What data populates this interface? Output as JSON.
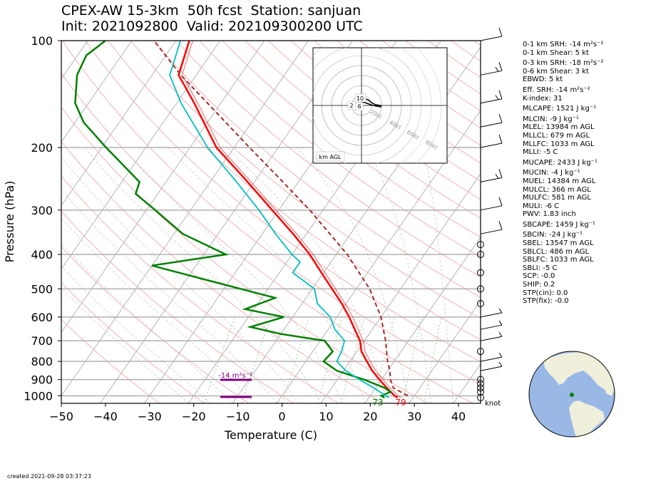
{
  "header": {
    "title_line1": "CPEX-AW 15-3km  50h fcst  Station: sanjuan",
    "title_line2": "Init: 2021092800  Valid: 202109300200 UTC"
  },
  "footer": {
    "created": "created 2021-09-28 03:37:23"
  },
  "stats": [
    "0-1 km SRH: -14 m²s⁻²",
    "0-1 km Shear: 5 kt",
    "0-3 km SRH: -18 m²s⁻²",
    "0-6 km Shear: 3 kt",
    "EBWD: 5 kt",
    "Eff. SRH: -14 m²s⁻²",
    "K-index: 31",
    "MLCAPE: 1521 J kg⁻¹",
    "MLCIN: -9 J kg⁻¹",
    "MLEL: 13984 m AGL",
    "MLLCL: 679 m AGL",
    "MLLFC: 1033 m AGL",
    "MLLI: -5 C",
    "MUCAPE: 2433 J kg⁻¹",
    "MUCIN: -4 J kg⁻¹",
    "MUEL: 14384 m AGL",
    "MULCL: 366 m AGL",
    "MULFC: 581 m AGL",
    "MULI: -6 C",
    "PWV: 1.83 inch",
    "SBCAPE: 1459 J kg⁻¹",
    "SBCIN: -24 J kg⁻¹",
    "SBEL: 13547 m AGL",
    "SBLCL: 486 m AGL",
    "SBLFC: 1033 m AGL",
    "SBLI: -5 C",
    "SCP: -0.0",
    "SHIP: 0.2",
    "STP(cin): 0.0",
    "STP(fix): -0.0"
  ],
  "hodograph": {
    "label": "km AGL",
    "ring_labels": [
      "20kt",
      "40kt",
      "60kt",
      "80kt"
    ],
    "height_labels": [
      "10",
      "2",
      "6"
    ]
  },
  "colors": {
    "temperature": "#ff0000",
    "dewpoint": "#008000",
    "wetbulb": "#00bfbf",
    "parcel": "#a52a2a",
    "srh": "#800080",
    "isobar": "#b0b0b0",
    "dry_adiabat": "#f4a0a0",
    "moist_adiabat": "#c0c0c0",
    "mixing_ratio": "#7fc97f"
  },
  "chart_data": {
    "type": "line",
    "title": "CPEX-AW 15-3km  50h fcst  Station: sanjuan",
    "xlabel": "Temperature (C)",
    "ylabel": "Pressure (hPa)",
    "xlim": [
      -50,
      45
    ],
    "ylim": [
      1050,
      100
    ],
    "y_scale": "log",
    "x_ticks": [
      "−50",
      "−40",
      "−30",
      "−20",
      "−10",
      "0",
      "10",
      "20",
      "30",
      "40"
    ],
    "y_ticks": [
      "100",
      "200",
      "300",
      "400",
      "500",
      "600",
      "700",
      "800",
      "900",
      "1000"
    ],
    "x_tick_values": [
      -50,
      -40,
      -30,
      -20,
      -10,
      0,
      10,
      20,
      30,
      40
    ],
    "y_tick_values": [
      100,
      200,
      300,
      400,
      500,
      600,
      700,
      800,
      900,
      1000
    ],
    "skew_deg_per_log10p": 56,
    "surface_labels": {
      "dewpoint": "73",
      "temperature": "79"
    },
    "wind_unit_label": "knot",
    "srh_label": "-14 m²s⁻²",
    "series": [
      {
        "key": "temperature",
        "pressure": [
          1012,
          1000,
          950,
          900,
          850,
          800,
          750,
          700,
          650,
          600,
          550,
          500,
          450,
          400,
          350,
          300,
          250,
          200,
          150,
          125,
          100
        ],
        "temperature": [
          26.5,
          25.5,
          22.5,
          19.5,
          16.5,
          13.8,
          11.0,
          9.0,
          6.0,
          2.8,
          -1.0,
          -5.5,
          -10.5,
          -16.0,
          -23.0,
          -31.5,
          -41.5,
          -54.0,
          -66.0,
          -74.0,
          -77.0
        ]
      },
      {
        "key": "dewpoint",
        "pressure": [
          1012,
          1000,
          975,
          950,
          900,
          850,
          800,
          750,
          700,
          670,
          640,
          600,
          570,
          530,
          470,
          430,
          400,
          350,
          300,
          270,
          250,
          200,
          170,
          150,
          125,
          110,
          100
        ],
        "temperature": [
          23.5,
          22.5,
          24.0,
          22.0,
          16.0,
          8.5,
          4.0,
          4.5,
          1.0,
          -10.0,
          -18.0,
          -12.0,
          -22.0,
          -17.0,
          -36.0,
          -50.0,
          -35.0,
          -48.0,
          -58.0,
          -65.0,
          -66.0,
          -79.0,
          -88.0,
          -93.0,
          -97.0,
          -98.0,
          -96.0
        ]
      },
      {
        "key": "wetbulb",
        "pressure": [
          1012,
          1000,
          950,
          900,
          850,
          800,
          750,
          700,
          650,
          600,
          550,
          500,
          450,
          420,
          400,
          350,
          300,
          250,
          200,
          150,
          125,
          100
        ],
        "temperature": [
          24.5,
          23.5,
          19.5,
          15.0,
          10.5,
          7.0,
          6.5,
          5.5,
          1.5,
          -1.5,
          -6.5,
          -9.5,
          -17.0,
          -17.0,
          -20.0,
          -27.0,
          -34.5,
          -44.0,
          -56.0,
          -69.0,
          -76.0,
          -79.0
        ]
      },
      {
        "key": "parcel",
        "pressure": [
          1000,
          950,
          900,
          850,
          800,
          700,
          600,
          500,
          400,
          300,
          250,
          200,
          150,
          125,
          100
        ],
        "temperature": [
          28.5,
          24.0,
          22.0,
          20.5,
          18.5,
          14.8,
          10.0,
          3.0,
          -7.5,
          -23.0,
          -33.5,
          -46.5,
          -63.0,
          -73.5,
          -85.0
        ]
      }
    ],
    "winds": {
      "pressure": [
        1012,
        975,
        950,
        925,
        900,
        850,
        800,
        750,
        700,
        650,
        600,
        550,
        500,
        450,
        400,
        375,
        350,
        300,
        250,
        200,
        175,
        150,
        125,
        100
      ],
      "speed_kt": [
        3,
        3,
        3,
        4,
        4,
        5,
        5,
        4,
        5,
        5,
        6,
        4,
        3,
        2,
        3,
        4,
        10,
        12,
        15,
        12,
        10,
        14,
        15,
        12
      ]
    }
  }
}
